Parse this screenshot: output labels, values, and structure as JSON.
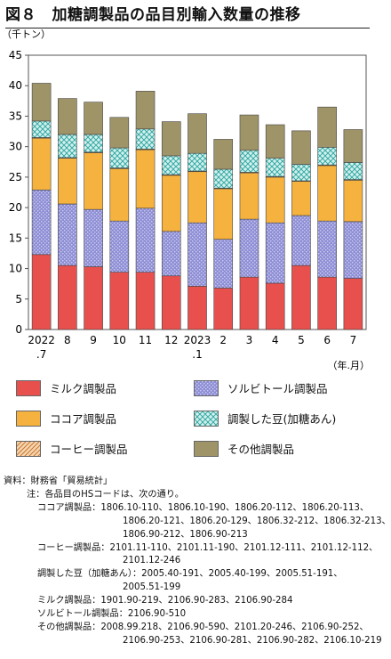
{
  "title": "図８　加糖調製品の品目別輸入数量の推移",
  "colors": {
    "milk": "#e8504e",
    "sorbitol": "#8e8ed6",
    "cocoa": "#f6b23e",
    "beans": "#d4f0ee",
    "coffee": "#e9b27a",
    "other": "#9e9468"
  },
  "chart_data": {
    "type": "bar",
    "stacked": true,
    "unit_label": "（千トン）",
    "x_unit_label": "（年.月）",
    "ylim": [
      0,
      45
    ],
    "yticks": [
      0,
      5,
      10,
      15,
      20,
      25,
      30,
      35,
      40,
      45
    ],
    "categories": [
      "2022\n.7",
      "8",
      "9",
      "10",
      "11",
      "12",
      "2023\n.1",
      "2",
      "3",
      "4",
      "5",
      "6",
      "7"
    ],
    "series": [
      {
        "name": "ミルク調製品",
        "key": "milk",
        "values": [
          12.3,
          10.5,
          10.3,
          9.4,
          9.4,
          8.8,
          7.1,
          6.8,
          8.6,
          7.6,
          10.5,
          8.6,
          8.4
        ]
      },
      {
        "name": "ソルビトール調製品",
        "key": "sorbitol",
        "values": [
          10.6,
          10.1,
          9.4,
          8.4,
          10.5,
          7.3,
          10.4,
          8.0,
          9.5,
          9.9,
          8.2,
          9.2,
          9.3
        ]
      },
      {
        "name": "ココア調製品",
        "key": "cocoa",
        "values": [
          8.5,
          7.5,
          9.3,
          8.6,
          9.6,
          9.2,
          8.4,
          8.3,
          7.6,
          7.5,
          5.6,
          9.1,
          6.8
        ]
      },
      {
        "name": "コーヒー調製品",
        "key": "coffee",
        "values": [
          0.1,
          0.1,
          0.1,
          0.1,
          0.1,
          0.1,
          0.1,
          0.1,
          0.1,
          0.1,
          0.1,
          0.1,
          0.1
        ]
      },
      {
        "name": "調製した豆(加糖あん)",
        "key": "beans",
        "values": [
          2.7,
          3.8,
          2.9,
          3.3,
          3.3,
          3.1,
          2.9,
          3.1,
          3.6,
          3.0,
          2.7,
          2.9,
          2.8
        ]
      },
      {
        "name": "その他調製品",
        "key": "other",
        "values": [
          6.2,
          5.9,
          5.3,
          5.0,
          6.2,
          5.6,
          6.5,
          4.9,
          5.8,
          5.5,
          5.5,
          6.6,
          5.4
        ]
      }
    ]
  },
  "legend": {
    "milk": "ミルク調製品",
    "sorbitol": "ソルビトール調製品",
    "cocoa": "ココア調製品",
    "beans": "調製した豆(加糖あん)",
    "coffee": "コーヒー調製品",
    "other": "その他調製品"
  },
  "notes": {
    "source": "資料：財務省「貿易統計」",
    "note_head": "注：各品目のHSコードは、次の通り。",
    "items": [
      {
        "label": "ココア調製品：",
        "lines": [
          "1806.10-110、1806.10-190、1806.20-112、1806.20-113、",
          "1806.20-121、1806.20-129、1806.32-212、1806.32-213、",
          "1806.90-212、1806.90-213"
        ]
      },
      {
        "label": "コーヒー調製品：",
        "lines": [
          "2101.11-110、2101.11-190、2101.12-111、2101.12-112、",
          "2101.12-246"
        ]
      },
      {
        "label": "調製した豆（加糖あん）：",
        "lines": [
          "2005.40-191、2005.40-199、2005.51-191、",
          "2005.51-199"
        ]
      },
      {
        "label": "ミルク調製品：",
        "lines": [
          "1901.90-219、2106.90-283、2106.90-284"
        ]
      },
      {
        "label": "ソルビトール調製品：",
        "lines": [
          "2106.90-510"
        ]
      },
      {
        "label": "その他調製品：",
        "lines": [
          "2008.99.218、2106.90-590、2101.20-246、2106.90-252、",
          "2106.90-253、2106.90-281、2106.90-282、2106.10-219"
        ]
      }
    ]
  }
}
